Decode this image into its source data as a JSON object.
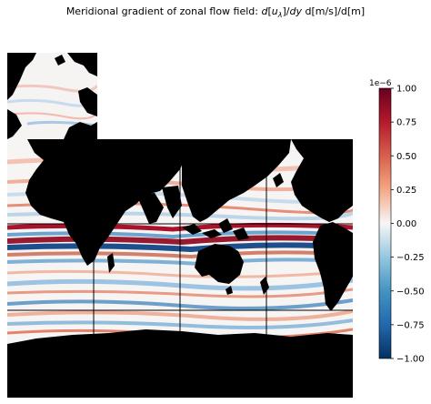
{
  "title": {
    "prefix": "Meridional gradient of zonal flow field: ",
    "var_d": "d",
    "var_open": "[",
    "var_u": "u",
    "var_sub": "λ",
    "var_close": "]/",
    "var_dy": "dy",
    "units": " d[m/s]/d[m]"
  },
  "colorbar": {
    "multiplier": "1e−6",
    "ticks": [
      "1.00",
      "0.75",
      "0.50",
      "0.25",
      "0.00",
      "−0.25",
      "−0.50",
      "−0.75",
      "−1.00"
    ],
    "range": [
      -1.0,
      1.0
    ],
    "colormap": "RdBu_r",
    "colors": {
      "max": "#67001f",
      "mid": "#f7f7f7",
      "min": "#053061"
    }
  },
  "map": {
    "land_color": "#000000",
    "grid_color": "#000000"
  }
}
